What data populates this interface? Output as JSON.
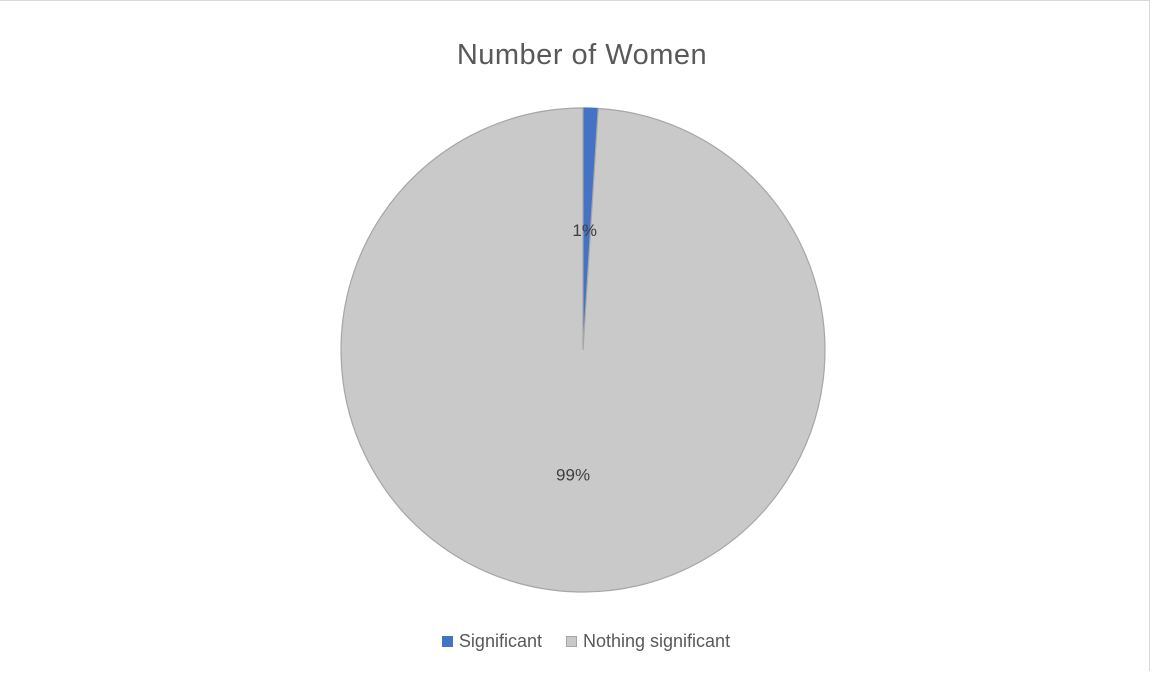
{
  "chart_data": {
    "type": "pie",
    "title": "Number of Women",
    "categories": [
      "Significant",
      "Nothing significant"
    ],
    "values": [
      1,
      99
    ],
    "data_labels": [
      "1%",
      "99%"
    ],
    "colors": [
      "#4472c4",
      "#c9c9c9"
    ],
    "legend_position": "bottom"
  }
}
